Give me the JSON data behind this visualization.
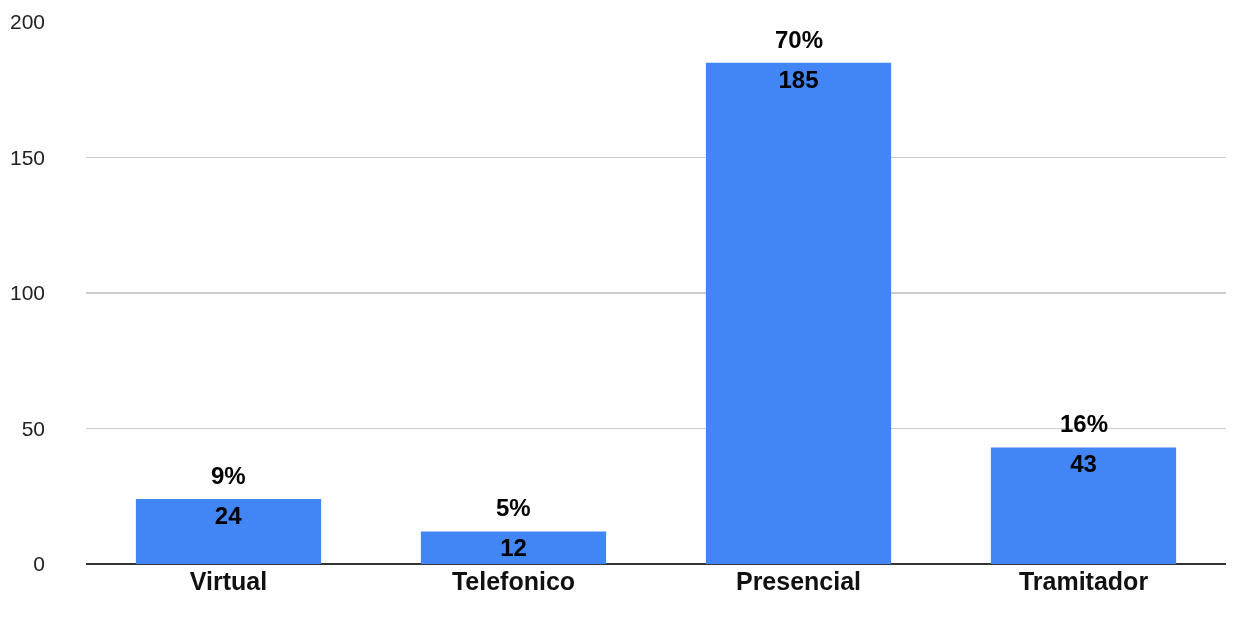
{
  "chart_data": {
    "type": "bar",
    "categories": [
      "Virtual",
      "Telefonico",
      "Presencial",
      "Tramitador"
    ],
    "values": [
      24,
      12,
      185,
      43
    ],
    "color": "#4285f4",
    "data_labels": true,
    "ylim": [
      0,
      200
    ],
    "yticks": [
      0,
      50,
      100,
      150,
      200
    ],
    "grid": "y",
    "annotations": [
      {
        "text": "9%",
        "x": "Virtual",
        "y": 24
      },
      {
        "text": "5%",
        "x": "Telefonico",
        "y": 12
      },
      {
        "text": "70%",
        "x": "Presencial",
        "y": 185
      },
      {
        "text": "16%",
        "x": "Tramitador",
        "y": 43
      }
    ]
  }
}
